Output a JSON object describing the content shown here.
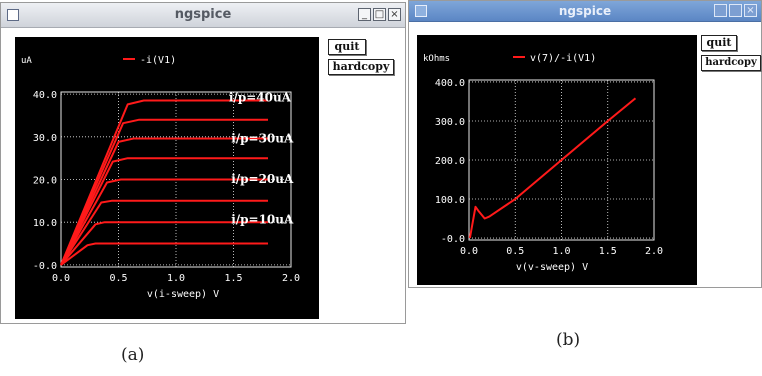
{
  "window_a": {
    "title": "ngspice",
    "window_buttons": [
      {
        "icon": "minimize-icon",
        "glyph": "_"
      },
      {
        "icon": "maximize-icon",
        "glyph": "□"
      },
      {
        "icon": "close-icon",
        "glyph": "×"
      }
    ],
    "buttons": {
      "quit": "quit",
      "hardcopy": "hardcopy"
    },
    "caption": "(a)"
  },
  "window_b": {
    "title": "ngspice",
    "window_buttons": [
      {
        "icon": "minimize-icon",
        "glyph": ""
      },
      {
        "icon": "maximize-icon",
        "glyph": ""
      },
      {
        "icon": "close-icon",
        "glyph": "×"
      }
    ],
    "buttons": {
      "quit": "quit",
      "hardcopy": "hardcopy"
    },
    "caption": "(b)"
  },
  "colors": {
    "plot_background": "#000000",
    "trace": "#ff1a1a",
    "grid": "#e8e8e8",
    "text": "#ffffff"
  },
  "chart_data": [
    {
      "type": "line",
      "unit_label": "uA",
      "legend": "-i(V1)",
      "xlabel": "v(i-sweep)  V",
      "xlim": [
        0,
        2
      ],
      "ylim": [
        -0.5,
        40.5
      ],
      "x_ticks": [
        "0.0",
        "0.5",
        "1.0",
        "1.5",
        "2.0"
      ],
      "y_ticks": [
        "-0.0",
        "10.0",
        "20.0",
        "30.0",
        "40.0"
      ],
      "x_tick_values": [
        0,
        0.5,
        1,
        1.5,
        2
      ],
      "y_tick_values": [
        0,
        10,
        20,
        30,
        40
      ],
      "grid": true,
      "annotations": [
        {
          "text": "i/p=40uA",
          "x": 1.73,
          "y": 38.3
        },
        {
          "text": "i/p=30uA",
          "x": 1.75,
          "y": 28.7
        },
        {
          "text": "i/p=20uA",
          "x": 1.75,
          "y": 19.2
        },
        {
          "text": "i/p=10uA",
          "x": 1.75,
          "y": 9.7
        }
      ],
      "series": [
        {
          "x": [
            0,
            0.23,
            0.3,
            1.8
          ],
          "values": [
            0,
            4.6,
            5.0,
            5.0
          ]
        },
        {
          "x": [
            0,
            0.3,
            0.38,
            1.8
          ],
          "values": [
            0,
            9.5,
            10.0,
            10.0
          ]
        },
        {
          "x": [
            0,
            0.35,
            0.44,
            1.8
          ],
          "values": [
            0,
            14.6,
            15.0,
            15.0
          ]
        },
        {
          "x": [
            0,
            0.4,
            0.52,
            1.8
          ],
          "values": [
            0,
            19.3,
            20.0,
            20.0
          ]
        },
        {
          "x": [
            0,
            0.45,
            0.58,
            1.8
          ],
          "values": [
            0,
            24.2,
            25.0,
            25.0
          ]
        },
        {
          "x": [
            0,
            0.5,
            0.63,
            1.8
          ],
          "values": [
            0,
            28.8,
            29.6,
            29.6
          ]
        },
        {
          "x": [
            0,
            0.54,
            0.68,
            1.8
          ],
          "values": [
            0,
            33.2,
            34.0,
            34.0
          ]
        },
        {
          "x": [
            0,
            0.58,
            0.72,
            1.8
          ],
          "values": [
            0,
            37.6,
            38.5,
            38.5
          ]
        }
      ]
    },
    {
      "type": "line",
      "unit_label": "kOhms",
      "legend": "v(7)/-i(V1)",
      "xlabel": "v(v-sweep)  V",
      "xlim": [
        0,
        2
      ],
      "ylim": [
        -5,
        405
      ],
      "x_ticks": [
        "0.0",
        "0.5",
        "1.0",
        "1.5",
        "2.0"
      ],
      "y_ticks": [
        "-0.0",
        "100.0",
        "200.0",
        "300.0",
        "400.0"
      ],
      "x_tick_values": [
        0,
        0.5,
        1,
        1.5,
        2
      ],
      "y_tick_values": [
        0,
        100,
        200,
        300,
        400
      ],
      "grid": true,
      "series": [
        {
          "x": [
            0.01,
            0.07,
            0.1,
            0.17,
            0.22,
            0.5,
            1.0,
            1.5,
            1.8
          ],
          "values": [
            0,
            80,
            70,
            50,
            55,
            100,
            200,
            300,
            358
          ]
        }
      ]
    }
  ]
}
